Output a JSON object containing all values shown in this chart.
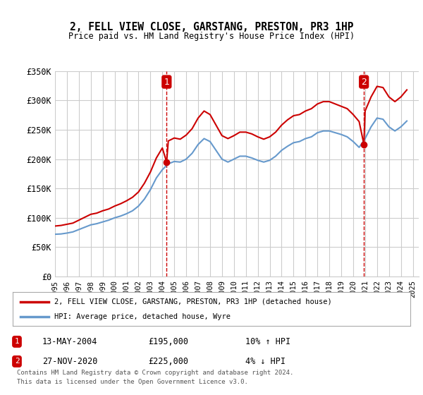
{
  "title": "2, FELL VIEW CLOSE, GARSTANG, PRESTON, PR3 1HP",
  "subtitle": "Price paid vs. HM Land Registry's House Price Index (HPI)",
  "ylim": [
    0,
    350000
  ],
  "yticks": [
    0,
    50000,
    100000,
    150000,
    200000,
    250000,
    300000,
    350000
  ],
  "ytick_labels": [
    "£0",
    "£50K",
    "£100K",
    "£150K",
    "£200K",
    "£250K",
    "£300K",
    "£350K"
  ],
  "xlim_start": 1995.0,
  "xlim_end": 2025.5,
  "sale1_date": 2004.36,
  "sale1_price": 195000,
  "sale2_date": 2020.9,
  "sale2_price": 225000,
  "legend_line1": "2, FELL VIEW CLOSE, GARSTANG, PRESTON, PR3 1HP (detached house)",
  "legend_line2": "HPI: Average price, detached house, Wyre",
  "table_row1": [
    "1",
    "13-MAY-2004",
    "£195,000",
    "10% ↑ HPI"
  ],
  "table_row2": [
    "2",
    "27-NOV-2020",
    "£225,000",
    "4% ↓ HPI"
  ],
  "footnote1": "Contains HM Land Registry data © Crown copyright and database right 2024.",
  "footnote2": "This data is licensed under the Open Government Licence v3.0.",
  "line_red_color": "#cc0000",
  "line_blue_color": "#6699cc",
  "vline_color": "#cc0000",
  "grid_color": "#cccccc",
  "background_color": "#ffffff",
  "hpi_x": [
    1995.0,
    1995.5,
    1996.0,
    1996.5,
    1997.0,
    1997.5,
    1998.0,
    1998.5,
    1999.0,
    1999.5,
    2000.0,
    2000.5,
    2001.0,
    2001.5,
    2002.0,
    2002.5,
    2003.0,
    2003.5,
    2004.0,
    2004.5,
    2005.0,
    2005.5,
    2006.0,
    2006.5,
    2007.0,
    2007.5,
    2008.0,
    2008.5,
    2009.0,
    2009.5,
    2010.0,
    2010.5,
    2011.0,
    2011.5,
    2012.0,
    2012.5,
    2013.0,
    2013.5,
    2014.0,
    2014.5,
    2015.0,
    2015.5,
    2016.0,
    2016.5,
    2017.0,
    2017.5,
    2018.0,
    2018.5,
    2019.0,
    2019.5,
    2020.0,
    2020.5,
    2021.0,
    2021.5,
    2022.0,
    2022.5,
    2023.0,
    2023.5,
    2024.0,
    2024.5
  ],
  "hpi_y": [
    72000,
    72500,
    74000,
    76000,
    80000,
    84000,
    88000,
    90000,
    93000,
    96000,
    100000,
    103000,
    107000,
    112000,
    120000,
    132000,
    148000,
    168000,
    182000,
    192000,
    196000,
    195000,
    200000,
    210000,
    225000,
    235000,
    230000,
    215000,
    200000,
    195000,
    200000,
    205000,
    205000,
    202000,
    198000,
    195000,
    198000,
    205000,
    215000,
    222000,
    228000,
    230000,
    235000,
    238000,
    245000,
    248000,
    248000,
    245000,
    242000,
    238000,
    230000,
    220000,
    235000,
    255000,
    270000,
    268000,
    255000,
    248000,
    255000,
    265000
  ],
  "hpi_indexed_x": [
    1995.0,
    1995.5,
    1996.0,
    1996.5,
    1997.0,
    1997.5,
    1998.0,
    1998.5,
    1999.0,
    1999.5,
    2000.0,
    2000.5,
    2001.0,
    2001.5,
    2002.0,
    2002.5,
    2003.0,
    2003.5,
    2004.0,
    2004.36,
    2004.5,
    2005.0,
    2005.5,
    2006.0,
    2006.5,
    2007.0,
    2007.5,
    2008.0,
    2008.5,
    2009.0,
    2009.5,
    2010.0,
    2010.5,
    2011.0,
    2011.5,
    2012.0,
    2012.5,
    2013.0,
    2013.5,
    2014.0,
    2014.5,
    2015.0,
    2015.5,
    2016.0,
    2016.5,
    2017.0,
    2017.5,
    2018.0,
    2018.5,
    2019.0,
    2019.5,
    2020.0,
    2020.5,
    2020.9,
    2021.0,
    2021.5,
    2022.0,
    2022.5,
    2023.0,
    2023.5,
    2024.0,
    2024.5
  ],
  "hpi_indexed_y": [
    86000,
    87000,
    89000,
    91000,
    96000,
    101000,
    106000,
    108000,
    112000,
    115000,
    120000,
    124000,
    129000,
    135000,
    144000,
    159000,
    178000,
    202000,
    219000,
    195000,
    231000,
    236000,
    234000,
    241000,
    252000,
    270000,
    282000,
    276000,
    258000,
    240000,
    235000,
    240000,
    246000,
    246000,
    243000,
    238000,
    234000,
    238000,
    246000,
    258000,
    267000,
    274000,
    276000,
    282000,
    286000,
    294000,
    298000,
    298000,
    294000,
    290000,
    286000,
    276000,
    264000,
    225000,
    282000,
    306000,
    324000,
    322000,
    306000,
    298000,
    306000,
    318000
  ]
}
